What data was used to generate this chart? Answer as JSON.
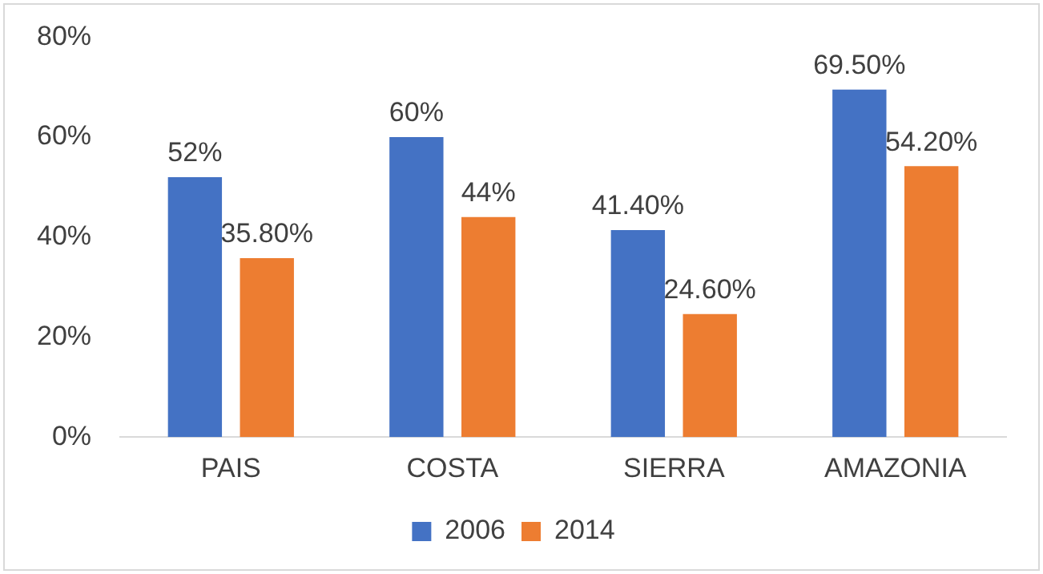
{
  "chart_data": {
    "type": "bar",
    "categories": [
      "PAIS",
      "COSTA",
      "SIERRA",
      "AMAZONIA"
    ],
    "series": [
      {
        "name": "2006",
        "color": "#4472c4",
        "values": [
          52,
          60,
          41.4,
          69.5
        ],
        "value_labels": [
          "52%",
          "60%",
          "41.40%",
          "69.50%"
        ]
      },
      {
        "name": "2014",
        "color": "#ed7d31",
        "values": [
          35.8,
          44,
          24.6,
          54.2
        ],
        "value_labels": [
          "35.80%",
          "44%",
          "24.60%",
          "54.20%"
        ]
      }
    ],
    "ylim": [
      0,
      80
    ],
    "yticks": [
      {
        "value": 0,
        "label": "0%"
      },
      {
        "value": 20,
        "label": "20%"
      },
      {
        "value": 40,
        "label": "40%"
      },
      {
        "value": 60,
        "label": "60%"
      },
      {
        "value": 80,
        "label": "80%"
      }
    ],
    "grid": false,
    "legend": "bottom"
  }
}
